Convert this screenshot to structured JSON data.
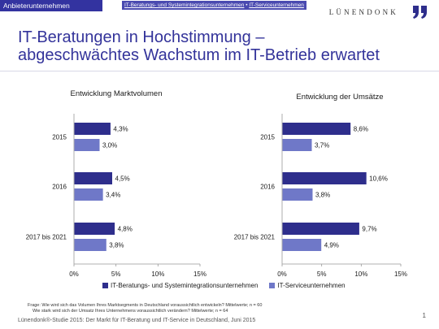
{
  "header": {
    "tag": "Anbieterunternehmen",
    "crumb_1": "IT-Beratungs- und Systemintegrationsunternehmen",
    "crumb_sep": " • ",
    "crumb_2": "IT-Serviceunternehmen",
    "logo": "LÜNENDONK"
  },
  "title": {
    "line1": "IT-Beratungen in Hochstimmung –",
    "line2": "abgeschwächtes Wachstum im IT-Betrieb erwartet"
  },
  "colors": {
    "series1": "#2e2e8c",
    "series2": "#6f78c8",
    "axis": "#999999"
  },
  "chart_data": [
    {
      "type": "bar",
      "orientation": "horizontal",
      "title": "Entwicklung Marktvolumen",
      "categories": [
        "2015",
        "2016",
        "2017 bis 2021"
      ],
      "series": [
        {
          "name": "IT-Beratungs- und Systemintegrationsunternehmen",
          "values": [
            4.3,
            4.5,
            4.8
          ]
        },
        {
          "name": "IT-Serviceunternehmen",
          "values": [
            3.0,
            3.4,
            3.8
          ]
        }
      ],
      "value_labels": [
        [
          "4,3%",
          "4,5%",
          "4,8%"
        ],
        [
          "3,0%",
          "3,4%",
          "3,8%"
        ]
      ],
      "xlim": [
        0,
        15
      ],
      "xticks": [
        "0%",
        "5%",
        "10%",
        "15%"
      ],
      "legend": "bottom"
    },
    {
      "type": "bar",
      "orientation": "horizontal",
      "title": "Entwicklung der Umsätze",
      "categories": [
        "2015",
        "2016",
        "2017 bis 2021"
      ],
      "series": [
        {
          "name": "IT-Beratungs- und Systemintegrationsunternehmen",
          "values": [
            8.6,
            10.6,
            9.7
          ]
        },
        {
          "name": "IT-Serviceunternehmen",
          "values": [
            3.7,
            3.8,
            4.9
          ]
        }
      ],
      "value_labels": [
        [
          "8,6%",
          "10,6%",
          "9,7%"
        ],
        [
          "3,7%",
          "3,8%",
          "4,9%"
        ]
      ],
      "xlim": [
        0,
        15
      ],
      "xticks": [
        "0%",
        "5%",
        "10%",
        "15%"
      ],
      "legend": "bottom"
    }
  ],
  "legend": {
    "item1": "IT-Beratungs- und Systemintegrationsunternehmen",
    "item2": "IT-Serviceunternehmen"
  },
  "footnote": {
    "line1": "Frage: Wie wird sich das Volumen Ihres Marktsegments in Deutschland voraussichtlich entwickeln? Mittelwerte; n = 60",
    "line2": "Wie stark wird sich der Umsatz Ihres Unternehmens voraussichtlich verändern? Mittelwerte; n = 64"
  },
  "source": "Lünendonk®-Studie 2015: Der Markt für IT-Beratung und IT-Service in Deutschland, Juni 2015",
  "page_number": "1"
}
